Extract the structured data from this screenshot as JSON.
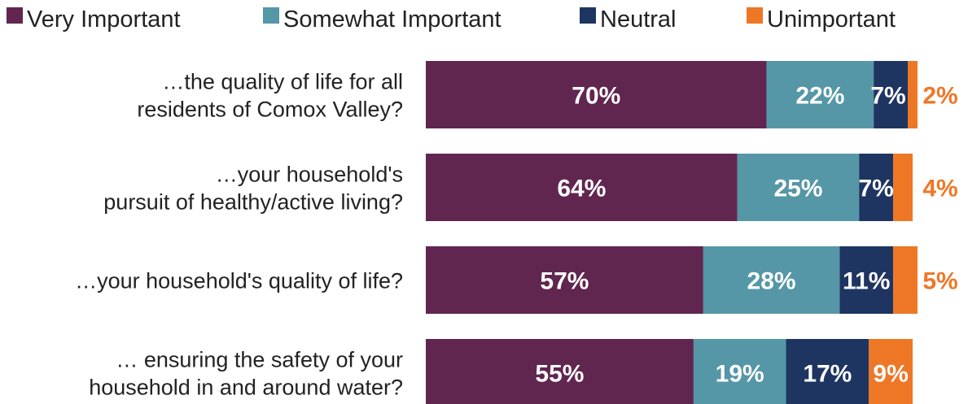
{
  "chart_data": {
    "type": "bar",
    "orientation": "horizontal",
    "stacked": true,
    "title": "",
    "xlabel": "",
    "ylabel": "",
    "xlim": [
      0,
      100
    ],
    "value_format": "percent",
    "legend_position": "top",
    "categories": [
      [
        "…the quality of life for all",
        "residents of Comox Valley?"
      ],
      [
        "…your household's",
        "pursuit of healthy/active living?"
      ],
      [
        "…your household's quality of life?"
      ],
      [
        "… ensuring the safety of your",
        "household in and around water?"
      ]
    ],
    "series": [
      {
        "name": "Very Important",
        "color": "#60264f",
        "label_color": "#ffffff",
        "values": [
          70,
          64,
          57,
          55
        ]
      },
      {
        "name": "Somewhat Important",
        "color": "#5597a6",
        "label_color": "#ffffff",
        "values": [
          22,
          25,
          28,
          19
        ]
      },
      {
        "name": "Neutral",
        "color": "#1e3561",
        "label_color": "#ffffff",
        "values": [
          7,
          7,
          11,
          17
        ]
      },
      {
        "name": "Unimportant",
        "color": "#ee7726",
        "label_color": "#ee7726",
        "values": [
          2,
          4,
          5,
          9
        ]
      }
    ],
    "outside_label_series": "Unimportant",
    "inside_label_rows_for_outside_series": [
      3
    ]
  }
}
